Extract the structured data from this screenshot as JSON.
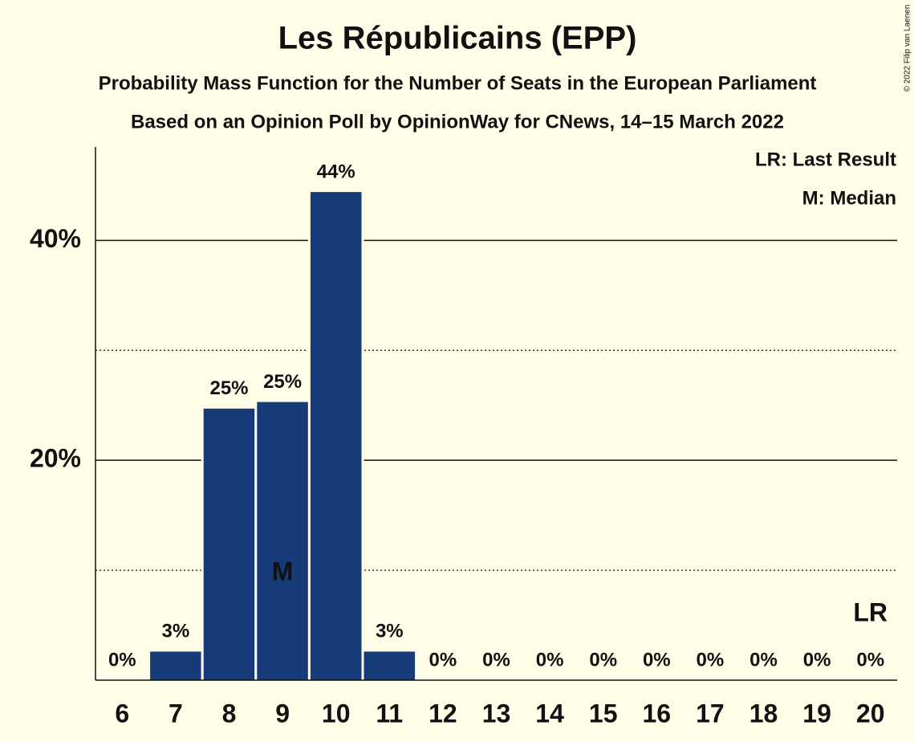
{
  "chart_data": {
    "type": "bar",
    "title": "Les Républicains (EPP)",
    "subtitles": [
      "Probability Mass Function for the Number of Seats in the European Parliament",
      "Based on an Opinion Poll by OpinionWay for CNews, 14–15 March 2022"
    ],
    "categories": [
      "6",
      "7",
      "8",
      "9",
      "10",
      "11",
      "12",
      "13",
      "14",
      "15",
      "16",
      "17",
      "18",
      "19",
      "20"
    ],
    "values": [
      0,
      2.6,
      24.7,
      25.3,
      44.4,
      2.6,
      0,
      0,
      0,
      0,
      0,
      0,
      0,
      0,
      0
    ],
    "value_labels": [
      "0%",
      "3%",
      "25%",
      "25%",
      "44%",
      "3%",
      "0%",
      "0%",
      "0%",
      "0%",
      "0%",
      "0%",
      "0%",
      "0%",
      "0%"
    ],
    "color": "#173b78",
    "ylim": [
      0,
      48.5
    ],
    "yticks": [
      {
        "value": 20,
        "label": "20%"
      },
      {
        "value": 40,
        "label": "40%"
      }
    ],
    "minor_yticks": [
      10,
      30
    ],
    "legend": [
      "LR: Last Result",
      "M: Median"
    ],
    "markers": [
      {
        "label": "M",
        "category": "9"
      },
      {
        "label": "LR",
        "category": "20"
      }
    ],
    "copyright": "© 2022 Filip van Laenen"
  }
}
